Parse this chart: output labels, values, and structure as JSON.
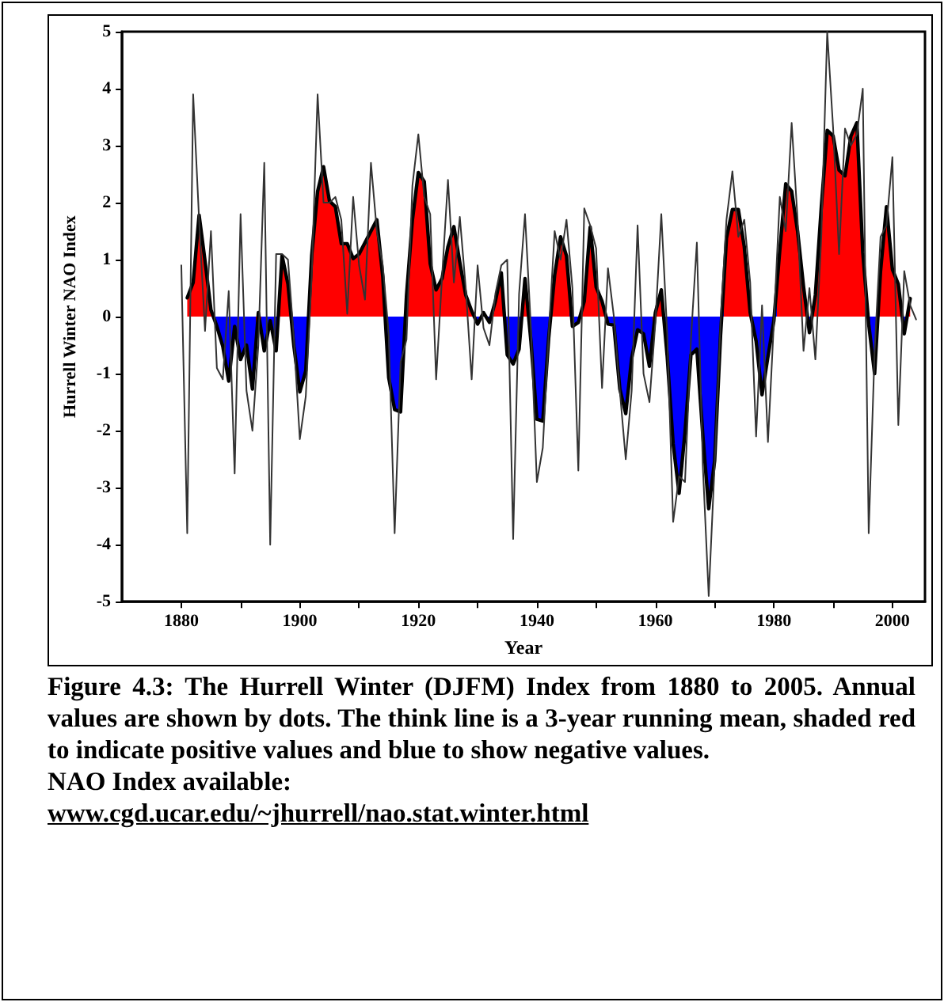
{
  "chart_data": {
    "type": "line",
    "ylabel": "Hurrell Winter NAO Index",
    "xlabel": "Year",
    "x": [
      1880,
      1881,
      1882,
      1883,
      1884,
      1885,
      1886,
      1887,
      1888,
      1889,
      1890,
      1891,
      1892,
      1893,
      1894,
      1895,
      1896,
      1897,
      1898,
      1899,
      1900,
      1901,
      1902,
      1903,
      1904,
      1905,
      1906,
      1907,
      1908,
      1909,
      1910,
      1911,
      1912,
      1913,
      1914,
      1915,
      1916,
      1917,
      1918,
      1919,
      1920,
      1921,
      1922,
      1923,
      1924,
      1925,
      1926,
      1927,
      1928,
      1929,
      1930,
      1931,
      1932,
      1933,
      1934,
      1935,
      1936,
      1937,
      1938,
      1939,
      1940,
      1941,
      1942,
      1943,
      1944,
      1945,
      1946,
      1947,
      1948,
      1949,
      1950,
      1951,
      1952,
      1953,
      1954,
      1955,
      1956,
      1957,
      1958,
      1959,
      1960,
      1961,
      1962,
      1963,
      1964,
      1965,
      1966,
      1967,
      1968,
      1969,
      1970,
      1971,
      1972,
      1973,
      1974,
      1975,
      1976,
      1977,
      1978,
      1979,
      1980,
      1981,
      1982,
      1983,
      1984,
      1985,
      1986,
      1987,
      1988,
      1989,
      1990,
      1991,
      1992,
      1993,
      1994,
      1995,
      1996,
      1997,
      1998,
      1999,
      2000,
      2001,
      2002,
      2003,
      2004
    ],
    "series": [
      {
        "type": "area",
        "color": "#000000",
        "colors": [
          null,
          "#ff0000",
          "#ff0000",
          "#ff0000",
          "#ff0000",
          "#ff0000",
          "#0000ff",
          "#0000ff",
          "#0000ff",
          "#0000ff",
          "#0000ff",
          "#0000ff",
          "#0000ff",
          "#ff0000",
          "#0000ff",
          "#0000ff",
          "#0000ff",
          "#ff0000",
          "#ff0000",
          "#0000ff",
          "#0000ff",
          "#0000ff",
          "#ff0000",
          "#ff0000",
          "#ff0000",
          "#ff0000",
          "#ff0000",
          "#ff0000",
          "#ff0000",
          "#ff0000",
          "#ff0000",
          "#ff0000",
          "#ff0000",
          "#ff0000",
          "#ff0000",
          "#0000ff",
          "#0000ff",
          "#0000ff",
          "#ff0000",
          "#ff0000",
          "#ff0000",
          "#ff0000",
          "#ff0000",
          "#ff0000",
          "#ff0000",
          "#ff0000",
          "#ff0000",
          "#ff0000",
          "#ff0000",
          "#ff0000",
          "#0000ff",
          "#ff0000",
          "#0000ff",
          "#ff0000",
          "#ff0000",
          "#0000ff",
          "#0000ff",
          "#0000ff",
          "#ff0000",
          "#0000ff",
          "#0000ff",
          "#0000ff",
          "#0000ff",
          "#ff0000",
          "#ff0000",
          "#ff0000",
          "#0000ff",
          "#0000ff",
          "#ff0000",
          "#ff0000",
          "#ff0000",
          "#ff0000",
          "#0000ff",
          "#0000ff",
          "#0000ff",
          "#0000ff",
          "#0000ff",
          "#0000ff",
          "#0000ff",
          "#0000ff",
          "#ff0000",
          "#ff0000",
          "#0000ff",
          "#0000ff",
          "#0000ff",
          "#0000ff",
          "#0000ff",
          "#0000ff",
          "#0000ff",
          "#0000ff",
          "#0000ff",
          "#0000ff",
          "#ff0000",
          "#ff0000",
          "#ff0000",
          "#ff0000",
          "#ff0000",
          "#0000ff",
          "#0000ff",
          "#0000ff",
          "#0000ff",
          "#ff0000",
          "#ff0000",
          "#ff0000",
          "#ff0000",
          "#ff0000",
          "#0000ff",
          "#ff0000",
          "#ff0000",
          "#ff0000",
          "#ff0000",
          "#ff0000",
          "#ff0000",
          "#ff0000",
          "#ff0000",
          "#ff0000",
          "#0000ff",
          "#0000ff",
          "#ff0000",
          "#ff0000",
          "#ff0000",
          "#ff0000",
          "#0000ff",
          "#ff0000",
          null
        ],
        "values": [
          null,
          0.33,
          0.6,
          1.78,
          0.98,
          0.12,
          -0.17,
          -0.52,
          -1.13,
          -0.17,
          -0.75,
          -0.5,
          -1.27,
          0.07,
          -0.6,
          -0.07,
          -0.6,
          1.07,
          0.57,
          -0.52,
          -1.32,
          -0.95,
          1.07,
          2.2,
          2.63,
          2.03,
          1.93,
          1.28,
          1.28,
          1.02,
          1.1,
          1.3,
          1.5,
          1.7,
          0.7,
          -1.07,
          -1.63,
          -1.67,
          0.37,
          1.7,
          2.53,
          2.37,
          0.93,
          0.47,
          0.67,
          1.23,
          1.58,
          0.95,
          0.38,
          0.1,
          -0.13,
          0.07,
          -0.1,
          0.27,
          0.77,
          -0.67,
          -0.83,
          -0.57,
          0.67,
          -0.43,
          -1.8,
          -1.83,
          -0.37,
          0.73,
          1.4,
          1.07,
          -0.17,
          -0.1,
          0.27,
          1.57,
          0.52,
          0.27,
          -0.13,
          -0.15,
          -1.27,
          -1.7,
          -0.73,
          -0.23,
          -0.3,
          -0.87,
          0.07,
          0.47,
          -0.7,
          -2.23,
          -3.1,
          -2.03,
          -0.67,
          -0.57,
          -2.07,
          -3.37,
          -2.53,
          -0.33,
          1.38,
          1.88,
          1.88,
          1.23,
          0.07,
          -0.43,
          -1.37,
          -0.7,
          -0.07,
          1.17,
          2.33,
          2.2,
          1.5,
          0.53,
          -0.28,
          0.38,
          1.92,
          3.27,
          3.17,
          2.57,
          2.47,
          3.17,
          3.4,
          1.13,
          -0.13,
          -1.0,
          0.8,
          1.93,
          0.83,
          0.57,
          -0.3,
          0.32,
          null
        ]
      },
      {
        "type": "line",
        "color": "#333333",
        "values": [
          0.9,
          -3.8,
          3.9,
          1.7,
          -0.25,
          1.5,
          -0.9,
          -1.1,
          0.45,
          -2.75,
          1.8,
          -1.3,
          -2.0,
          -0.5,
          2.7,
          -4.0,
          1.1,
          1.1,
          1.0,
          -0.4,
          -2.15,
          -1.4,
          0.7,
          3.9,
          2.0,
          2.0,
          2.1,
          1.7,
          0.05,
          2.1,
          0.9,
          0.3,
          2.7,
          1.5,
          0.9,
          -0.3,
          -3.8,
          -0.8,
          -0.4,
          2.3,
          3.2,
          2.1,
          1.8,
          -1.1,
          0.7,
          2.4,
          0.6,
          1.75,
          0.5,
          -1.1,
          0.9,
          -0.2,
          -0.5,
          0.4,
          0.9,
          1.0,
          -3.9,
          0.4,
          1.8,
          -0.2,
          -2.9,
          -2.3,
          -0.3,
          1.5,
          1.0,
          1.7,
          0.5,
          -2.7,
          1.9,
          1.6,
          1.2,
          -1.25,
          0.85,
          0.0,
          -1.3,
          -2.5,
          -1.3,
          1.6,
          -1.0,
          -1.5,
          -0.1,
          1.8,
          -0.3,
          -3.6,
          -2.8,
          -2.9,
          -0.4,
          1.3,
          -2.6,
          -4.9,
          -2.6,
          -0.1,
          1.7,
          2.55,
          1.4,
          1.7,
          0.6,
          -2.1,
          0.2,
          -2.2,
          -0.1,
          2.1,
          1.5,
          3.4,
          1.7,
          -0.6,
          0.5,
          -0.75,
          1.4,
          5.0,
          3.3,
          1.1,
          3.3,
          3.0,
          3.2,
          4.0,
          -3.8,
          -0.6,
          1.4,
          1.6,
          2.8,
          -1.9,
          0.8,
          0.2,
          -0.05
        ]
      }
    ],
    "xlim": [
      1870,
      2005.5
    ],
    "xticks": [
      1880,
      {
        "value": 1890,
        "label": null
      },
      1900,
      {
        "value": 1910,
        "label": null
      },
      1920,
      {
        "value": 1930,
        "label": null
      },
      1940,
      {
        "value": 1950,
        "label": null
      },
      1960,
      {
        "value": 1970,
        "label": null
      },
      1980,
      {
        "value": 1990,
        "label": null
      },
      2000
    ],
    "ylim": [
      -5,
      5
    ],
    "yticks": [
      -5,
      -4,
      -3,
      -2,
      -1,
      0,
      1,
      2,
      3,
      4,
      5
    ],
    "grid": false,
    "annotations": [
      "Figure 4.3: The Hurrell Winter (DJFM) Index from 1880 to 2005.  Annual values are shown by dots. The think line is a 3-year running mean, shaded red to indicate positive values and blue to show negative values.",
      "NAO Index available:",
      "www.cgd.ucar.edu/~jhurrell/nao.stat.winter.html"
    ]
  }
}
